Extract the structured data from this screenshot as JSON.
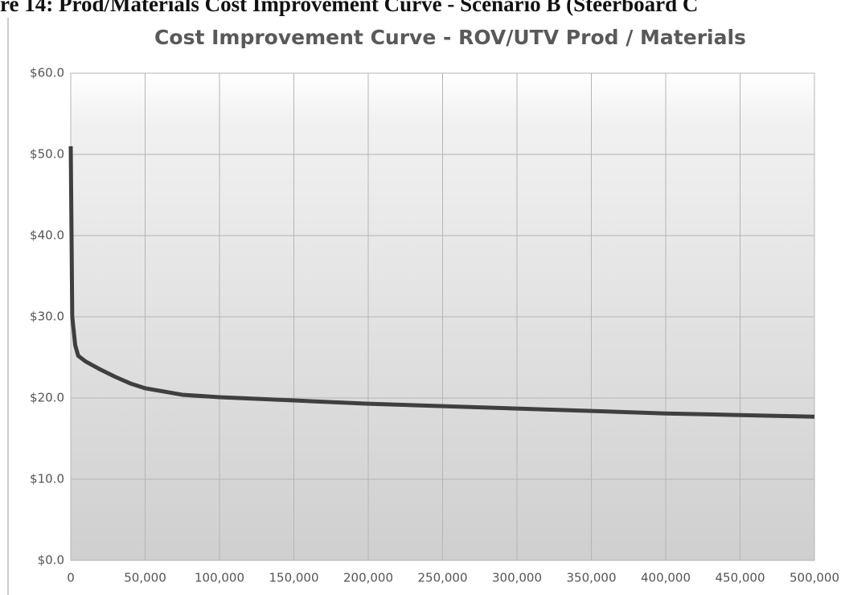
{
  "heading": "re 14: Prod/Materials Cost Improvement Curve - Scenario B (Steerboard C",
  "chart_data": {
    "type": "line",
    "title": "Cost Improvement Curve - ROV/UTV Prod / Materials",
    "x": [
      0,
      1000,
      3000,
      5000,
      10000,
      20000,
      30000,
      40000,
      50000,
      75000,
      100000,
      150000,
      200000,
      250000,
      300000,
      350000,
      400000,
      450000,
      500000
    ],
    "series": [
      {
        "color": "#3f3f3f",
        "values": [
          51,
          30,
          26.5,
          25.2,
          24.5,
          23.5,
          22.6,
          21.8,
          21.2,
          20.4,
          20.1,
          19.7,
          19.3,
          19.0,
          18.7,
          18.4,
          18.1,
          17.9,
          17.7
        ]
      }
    ],
    "xlim": [
      0,
      500000
    ],
    "xticks": [
      0,
      {
        "value": 50000,
        "label": "50,000"
      },
      {
        "value": 100000,
        "label": "100,000"
      },
      {
        "value": 150000,
        "label": "150,000"
      },
      {
        "value": 200000,
        "label": "200,000"
      },
      {
        "value": 250000,
        "label": "250,000"
      },
      {
        "value": 300000,
        "label": "300,000"
      },
      {
        "value": 350000,
        "label": "350,000"
      },
      {
        "value": 400000,
        "label": "400,000"
      },
      {
        "value": 450000,
        "label": "450,000"
      },
      {
        "value": 500000,
        "label": "500,000"
      }
    ],
    "ylim": [
      0,
      60
    ],
    "yticks": [
      {
        "value": 0,
        "label": "$0.0"
      },
      {
        "value": 10,
        "label": "$10.0"
      },
      {
        "value": 20,
        "label": "$20.0"
      },
      {
        "value": 30,
        "label": "$30.0"
      },
      {
        "value": 40,
        "label": "$40.0"
      },
      {
        "value": 50,
        "label": "$50.0"
      },
      {
        "value": 60,
        "label": "$60.0"
      }
    ],
    "grid": true
  }
}
